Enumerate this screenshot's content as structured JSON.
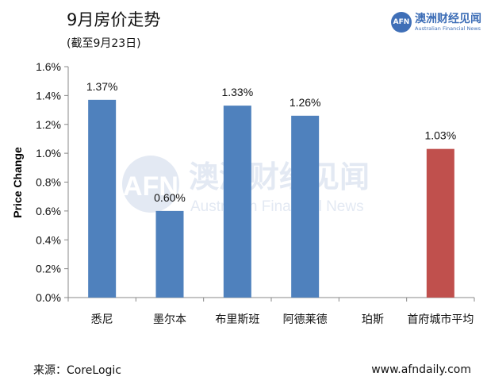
{
  "title": "9月房价走势",
  "subtitle": "(截至9月23日)",
  "logo": {
    "badge": "AFN",
    "name_cn": "澳洲财经见闻",
    "name_en": "Australian Financial News"
  },
  "watermark": {
    "badge": "AFN",
    "name_cn": "澳洲财经见闻",
    "name_en": "Australian Financial News"
  },
  "source": "来源：CoreLogic",
  "website": "www.afndaily.com",
  "colors": {
    "bar_default": "#4f81bd",
    "bar_highlight": "#c0504d",
    "watermark": "#e3e9f3"
  },
  "chart_data": {
    "type": "bar",
    "title": "",
    "xlabel": "",
    "ylabel": "Price Change",
    "categories": [
      "悉尼",
      "墨尔本",
      "布里斯班",
      "阿德莱德",
      "珀斯",
      "首府城市平均"
    ],
    "values": [
      1.37,
      0.6,
      1.33,
      1.26,
      null,
      1.03
    ],
    "value_labels": [
      "1.37%",
      "0.60%",
      "1.33%",
      "1.26%",
      "",
      "1.03%"
    ],
    "bar_colors": [
      "#4f81bd",
      "#4f81bd",
      "#4f81bd",
      "#4f81bd",
      "#4f81bd",
      "#c0504d"
    ],
    "ylim": [
      0,
      1.6
    ],
    "yticks": [
      0,
      0.2,
      0.4,
      0.6,
      0.8,
      1.0,
      1.2,
      1.4,
      1.6
    ],
    "ytick_labels": [
      "0.0%",
      "0.2%",
      "0.4%",
      "0.6%",
      "0.8%",
      "1.0%",
      "1.2%",
      "1.4%",
      "1.6%"
    ],
    "grid": false,
    "legend": "none"
  }
}
